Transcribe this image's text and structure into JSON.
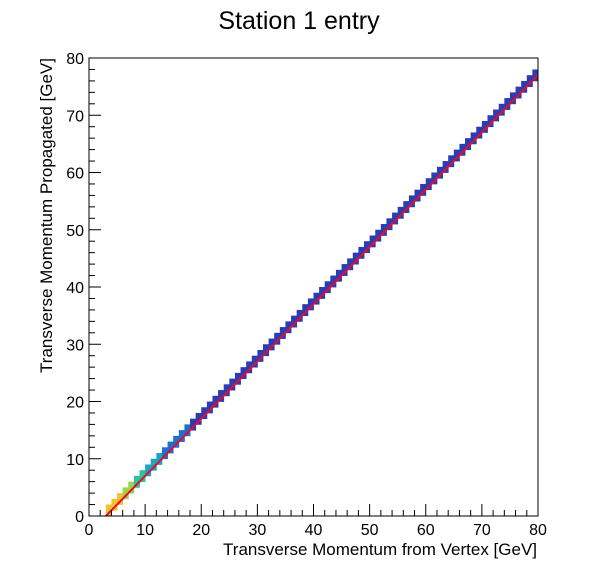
{
  "chart_data": {
    "type": "heatmap",
    "title": "Station 1 entry",
    "xlabel": "Transverse Momentum from Vertex [GeV]",
    "ylabel": "Transverse Momentum Propagated [GeV]",
    "xlim": [
      0,
      80
    ],
    "ylim": [
      0,
      80
    ],
    "xticks": [
      0,
      10,
      20,
      30,
      40,
      50,
      60,
      70,
      80
    ],
    "yticks": [
      0,
      10,
      20,
      30,
      40,
      50,
      60,
      70,
      80
    ],
    "grid": false,
    "bin_width": 1,
    "bins": [
      {
        "x": 3,
        "y": 0,
        "level": 0.9
      },
      {
        "x": 3,
        "y": 1,
        "level": 0.85
      },
      {
        "x": 4,
        "y": 1,
        "level": 0.85
      },
      {
        "x": 4,
        "y": 2,
        "level": 0.8
      },
      {
        "x": 5,
        "y": 2,
        "level": 0.78
      },
      {
        "x": 5,
        "y": 3,
        "level": 0.75
      },
      {
        "x": 6,
        "y": 3,
        "level": 0.72
      },
      {
        "x": 6,
        "y": 4,
        "level": 0.7
      },
      {
        "x": 7,
        "y": 4,
        "level": 0.65
      },
      {
        "x": 7,
        "y": 5,
        "level": 0.6
      },
      {
        "x": 8,
        "y": 5,
        "level": 0.55
      },
      {
        "x": 8,
        "y": 6,
        "level": 0.5
      },
      {
        "x": 9,
        "y": 6,
        "level": 0.45
      },
      {
        "x": 9,
        "y": 7,
        "level": 0.42
      },
      {
        "x": 10,
        "y": 7,
        "level": 0.4
      },
      {
        "x": 10,
        "y": 8,
        "level": 0.36
      },
      {
        "x": 11,
        "y": 8,
        "level": 0.33
      },
      {
        "x": 11,
        "y": 9,
        "level": 0.3
      },
      {
        "x": 12,
        "y": 9,
        "level": 0.28
      },
      {
        "x": 12,
        "y": 10,
        "level": 0.26
      },
      {
        "x": 13,
        "y": 10,
        "level": 0.24
      },
      {
        "x": 13,
        "y": 11,
        "level": 0.22
      },
      {
        "x": 14,
        "y": 11,
        "level": 0.2
      },
      {
        "x": 14,
        "y": 12,
        "level": 0.18
      },
      {
        "x": 15,
        "y": 12,
        "level": 0.17
      },
      {
        "x": 15,
        "y": 13,
        "level": 0.16
      },
      {
        "x": 16,
        "y": 13,
        "level": 0.14
      },
      {
        "x": 16,
        "y": 14,
        "level": 0.13
      },
      {
        "x": 17,
        "y": 14,
        "level": 0.12
      },
      {
        "x": 17,
        "y": 15,
        "level": 0.11
      },
      {
        "x": 18,
        "y": 15,
        "level": 0.1
      }
    ],
    "diagonal_band": {
      "x_start": 18,
      "x_end": 80,
      "offset": -2.5,
      "level": 0.05
    },
    "fit_line": {
      "x": [
        3,
        80
      ],
      "y": [
        0,
        77
      ],
      "color": "#e0102a"
    },
    "palette": [
      "#2c3cb4",
      "#1f6fd1",
      "#1aa5c8",
      "#2bc39a",
      "#9cd54a",
      "#f2c12e",
      "#fbe31b"
    ]
  }
}
